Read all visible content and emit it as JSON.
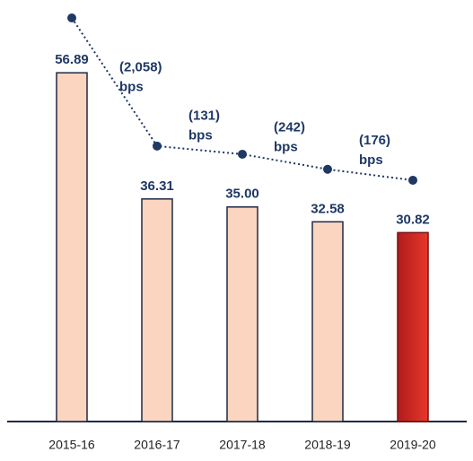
{
  "chart_data": {
    "type": "bar",
    "categories": [
      "2015-16",
      "2016-17",
      "2017-18",
      "2018-19",
      "2019-20"
    ],
    "series": [
      {
        "name": null,
        "colors": [
          "#fcd5c0",
          "#fcd5c0",
          "#fcd5c0",
          "#fcd5c0",
          "#d42a2a"
        ],
        "values": [
          56.89,
          36.31,
          35.0,
          32.58,
          30.82
        ],
        "value_labels": [
          "56.89",
          "36.31",
          "35.00",
          "32.58",
          "30.82"
        ]
      },
      {
        "name": null,
        "type": "line",
        "axis": "y2",
        "color": "#1f3864",
        "values": [
          56.89,
          36.31,
          35.0,
          32.58,
          30.82
        ]
      }
    ],
    "annotations": [
      [
        "(2,058)",
        "bps"
      ],
      [
        "(131)",
        "bps"
      ],
      [
        "(242)",
        "bps"
      ],
      [
        "(176)",
        "bps"
      ]
    ],
    "ylim": [
      0,
      67.3
    ],
    "y2lim": [
      -7.94,
      58.33
    ]
  }
}
